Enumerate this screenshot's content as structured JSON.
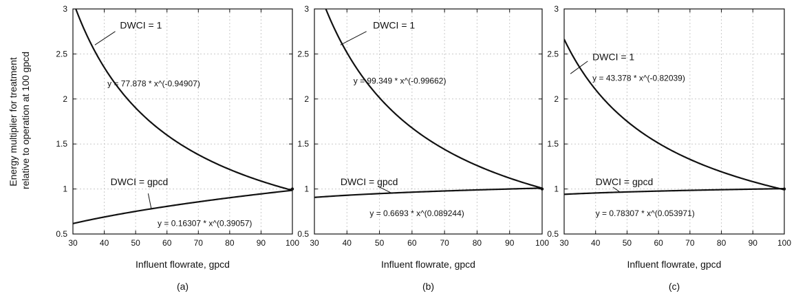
{
  "figure": {
    "y_axis_label_lines": [
      "Energy multiplier for treatment",
      "relative to operation at 100 gpcd"
    ]
  },
  "chart_data": [
    {
      "type": "line",
      "caption": "(a)",
      "xlabel": "Influent flowrate, gpcd",
      "ylabel": "Energy multiplier for treatment relative to operation at 100 gpcd",
      "xlim": [
        30,
        100
      ],
      "ylim": [
        0.5,
        3
      ],
      "x_ticks": [
        30,
        40,
        50,
        60,
        70,
        80,
        90,
        100
      ],
      "y_ticks": [
        0.5,
        1,
        1.5,
        2,
        2.5,
        3
      ],
      "grid": true,
      "series": [
        {
          "name": "DWCI = 1",
          "equation": "y = 77.878 * x^(-0.94907)",
          "coef": 77.878,
          "exp": -0.94907,
          "points": [
            [
              30,
              3.04
            ],
            [
              40,
              2.31
            ],
            [
              50,
              1.87
            ],
            [
              60,
              1.57
            ],
            [
              70,
              1.35
            ],
            [
              80,
              1.19
            ],
            [
              90,
              1.06
            ],
            [
              100,
              0.98
            ]
          ]
        },
        {
          "name": "DWCI = gpcd",
          "equation": "y = 0.16307 * x^(0.39057)",
          "coef": 0.16307,
          "exp": 0.39057,
          "points": [
            [
              30,
              0.62
            ],
            [
              40,
              0.69
            ],
            [
              50,
              0.75
            ],
            [
              60,
              0.81
            ],
            [
              70,
              0.86
            ],
            [
              80,
              0.9
            ],
            [
              90,
              0.95
            ],
            [
              100,
              0.99
            ]
          ]
        }
      ]
    },
    {
      "type": "line",
      "caption": "(b)",
      "xlabel": "Influent flowrate, gpcd",
      "xlim": [
        30,
        100
      ],
      "ylim": [
        0.5,
        3
      ],
      "x_ticks": [
        30,
        40,
        50,
        60,
        70,
        80,
        90,
        100
      ],
      "y_ticks": [
        0.5,
        1,
        1.5,
        2,
        2.5,
        3
      ],
      "grid": true,
      "series": [
        {
          "name": "DWCI = 1",
          "equation": "y = 99.349 * x^(-0.99662)",
          "coef": 99.349,
          "exp": -0.99662,
          "points": [
            [
              30,
              3.36
            ],
            [
              40,
              2.52
            ],
            [
              50,
              2.02
            ],
            [
              60,
              1.68
            ],
            [
              70,
              1.44
            ],
            [
              80,
              1.26
            ],
            [
              90,
              1.12
            ],
            [
              100,
              1.0
            ]
          ]
        },
        {
          "name": "DWCI = gpcd",
          "equation": "y = 0.6693 * x^(0.089244)",
          "coef": 0.6693,
          "exp": 0.089244,
          "points": [
            [
              30,
              0.91
            ],
            [
              40,
              0.93
            ],
            [
              50,
              0.95
            ],
            [
              60,
              0.96
            ],
            [
              70,
              0.98
            ],
            [
              80,
              0.99
            ],
            [
              90,
              0.99
            ],
            [
              100,
              1.0
            ]
          ]
        }
      ]
    },
    {
      "type": "line",
      "caption": "(c)",
      "xlabel": "Influent flowrate, gpcd",
      "xlim": [
        30,
        100
      ],
      "ylim": [
        0.5,
        3
      ],
      "x_ticks": [
        30,
        40,
        50,
        60,
        70,
        80,
        90,
        100
      ],
      "y_ticks": [
        0.5,
        1,
        1.5,
        2,
        2.5,
        3
      ],
      "grid": true,
      "series": [
        {
          "name": "DWCI = 1",
          "equation": "y = 43.378 * x^(-0.82039)",
          "coef": 43.378,
          "exp": -0.82039,
          "points": [
            [
              30,
              2.67
            ],
            [
              40,
              2.11
            ],
            [
              50,
              1.77
            ],
            [
              60,
              1.53
            ],
            [
              70,
              1.35
            ],
            [
              80,
              1.22
            ],
            [
              90,
              1.11
            ],
            [
              100,
              1.02
            ]
          ]
        },
        {
          "name": "DWCI = gpcd",
          "equation": "y = 0.78307 * x^(0.053971)",
          "coef": 0.78307,
          "exp": 0.053971,
          "points": [
            [
              30,
              0.94
            ],
            [
              40,
              0.95
            ],
            [
              50,
              0.96
            ],
            [
              60,
              0.97
            ],
            [
              70,
              0.98
            ],
            [
              80,
              0.99
            ],
            [
              90,
              0.99
            ],
            [
              100,
              1.0
            ]
          ]
        }
      ]
    }
  ]
}
